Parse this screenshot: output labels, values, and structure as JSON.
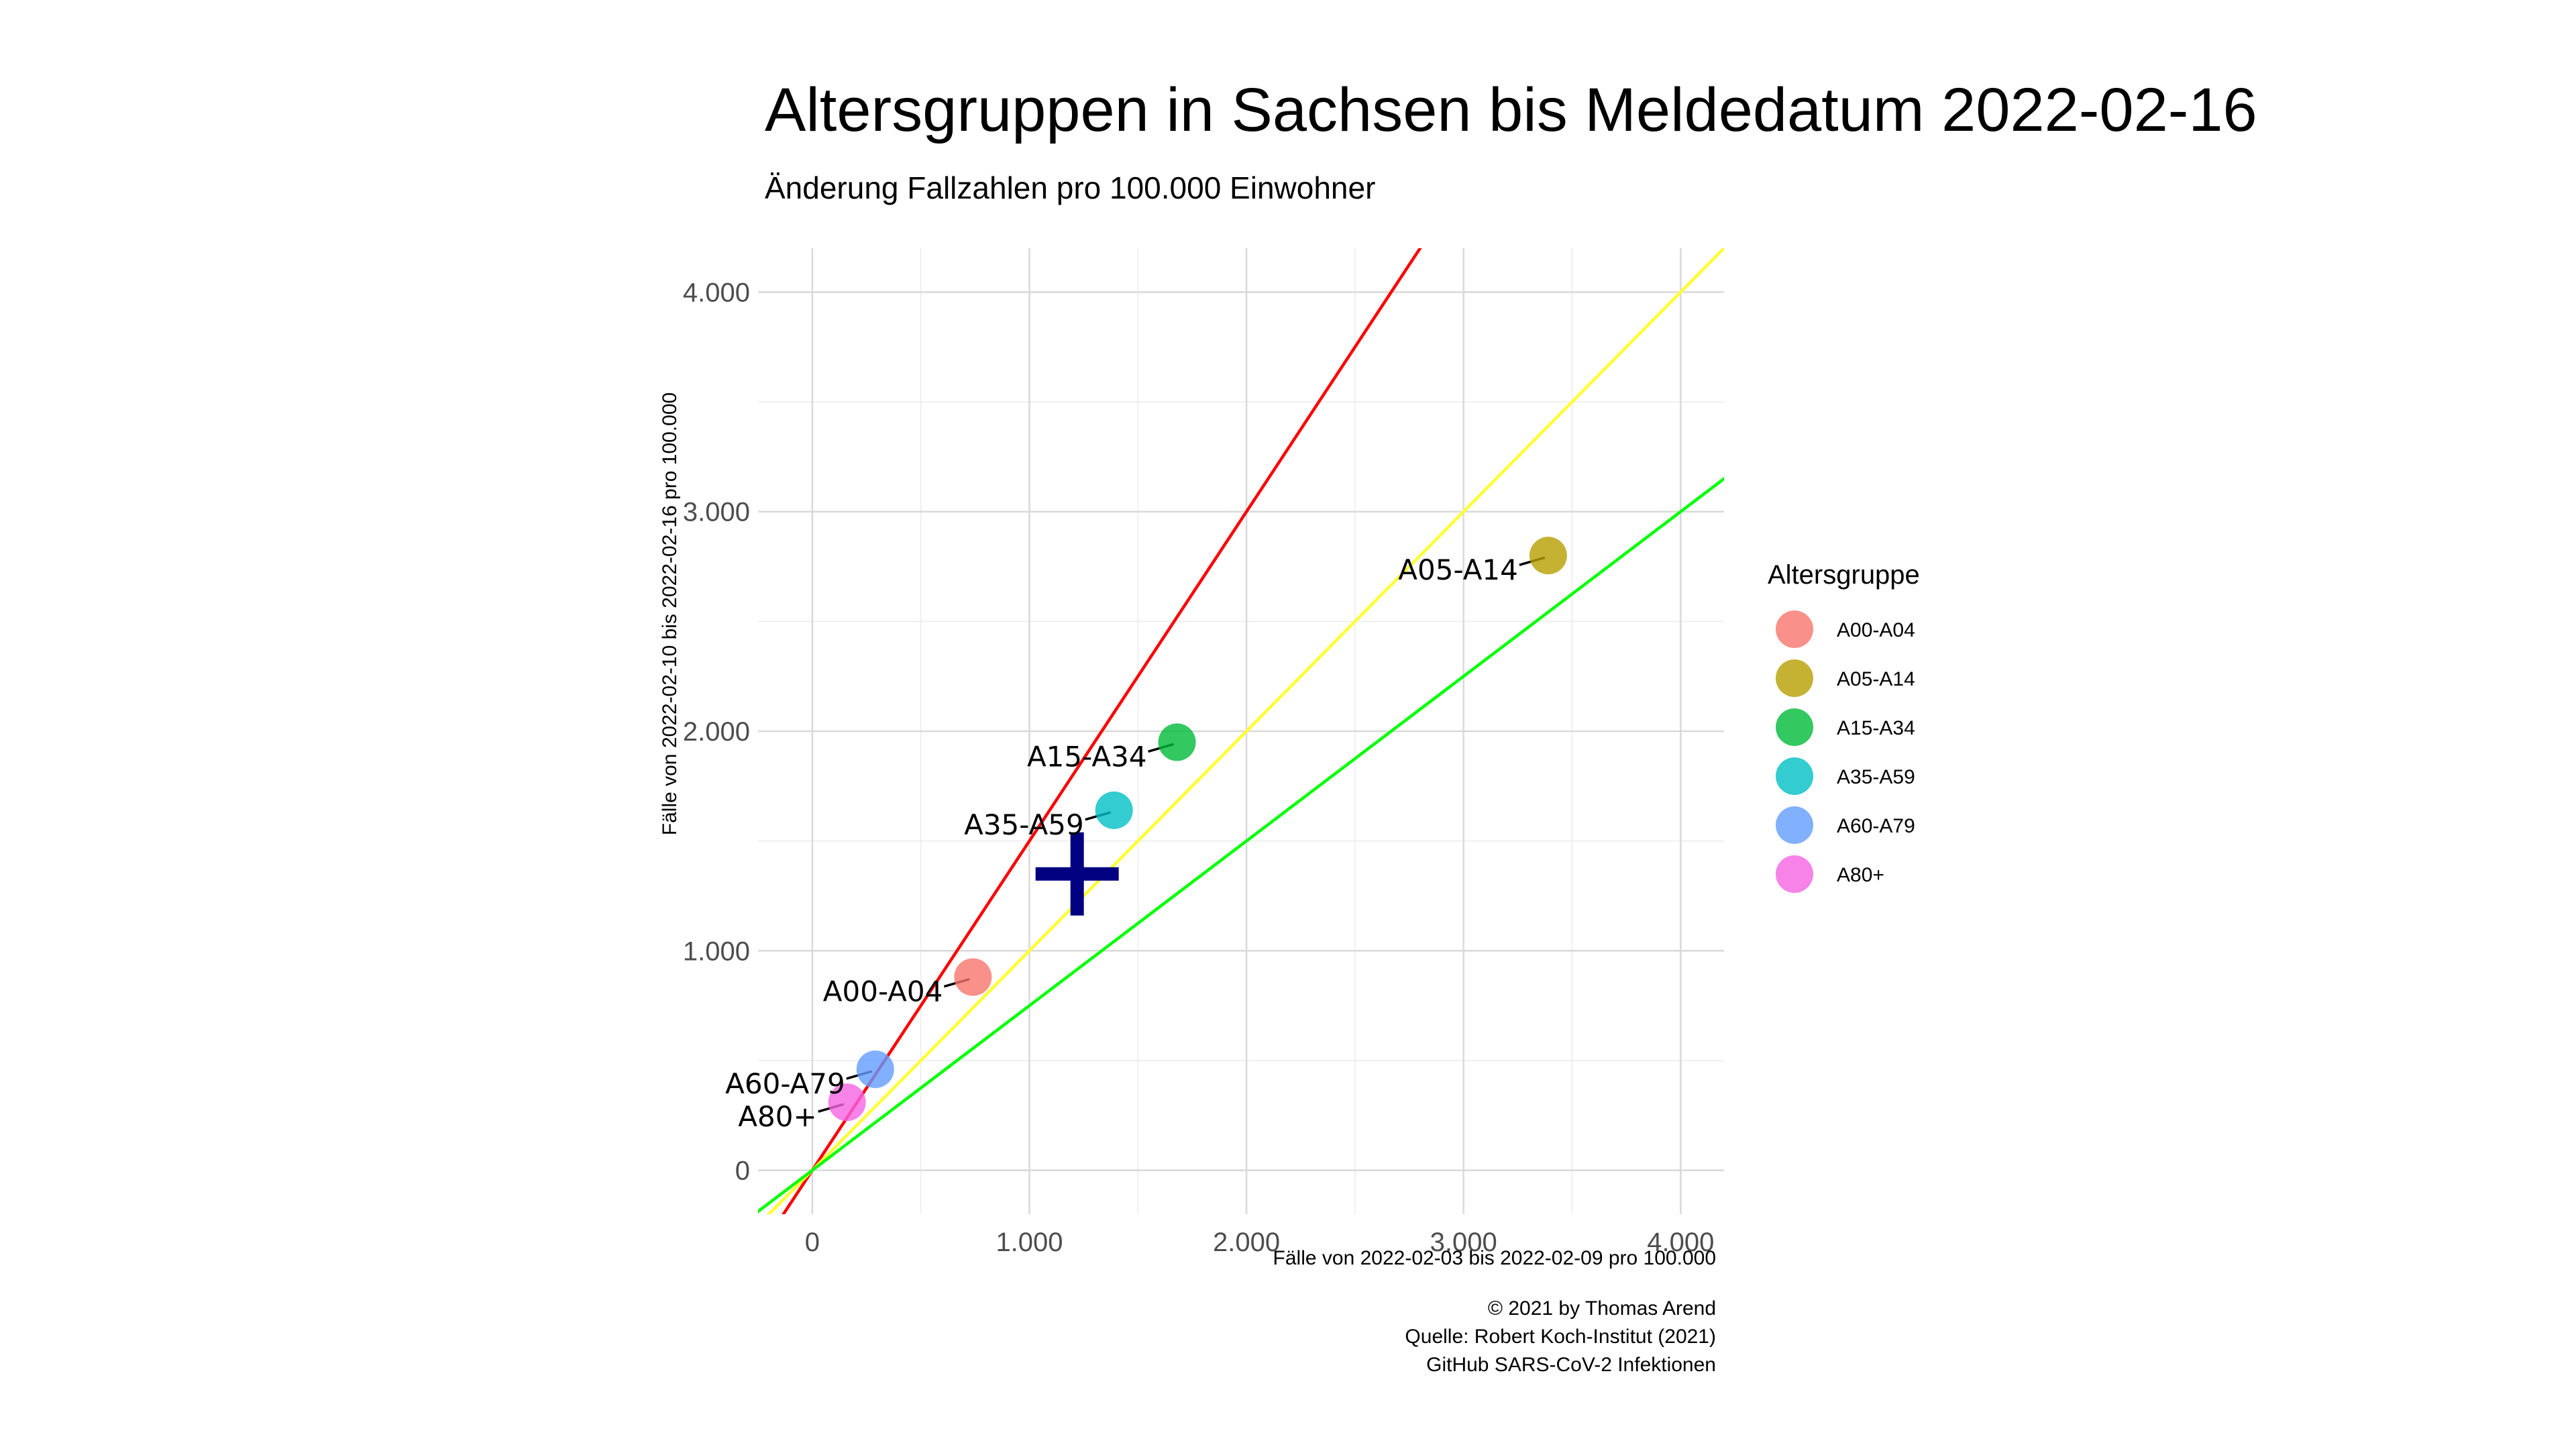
{
  "chart_data": {
    "type": "scatter",
    "title": "Altersgruppen in Sachsen bis Meldedatum 2022-02-16",
    "subtitle": "Änderung Fallzahlen pro 100.000 Einwohner",
    "xlabel": "Fälle von 2022-02-03 bis 2022-02-09 pro 100.000",
    "ylabel": "Fälle von 2022-02-10 bis 2022-02-16 pro 100.000",
    "xlim": [
      -250,
      4200
    ],
    "ylim": [
      -200,
      4200
    ],
    "x_ticks": [
      {
        "value": 0,
        "label": "0"
      },
      {
        "value": 1000,
        "label": "1.000"
      },
      {
        "value": 2000,
        "label": "2.000"
      },
      {
        "value": 3000,
        "label": "3.000"
      },
      {
        "value": 4000,
        "label": "4.000"
      }
    ],
    "y_ticks": [
      {
        "value": 0,
        "label": "0"
      },
      {
        "value": 1000,
        "label": "1.000"
      },
      {
        "value": 2000,
        "label": "2.000"
      },
      {
        "value": 3000,
        "label": "3.000"
      },
      {
        "value": 4000,
        "label": "4.000"
      }
    ],
    "grid": true,
    "reference_lines": [
      {
        "slope": 1.5,
        "color": "#ff0000"
      },
      {
        "slope": 1.0,
        "color": "#ffff33"
      },
      {
        "slope": 0.75,
        "color": "#00ff00"
      }
    ],
    "points": [
      {
        "name": "A00-A04",
        "x": 740,
        "y": 880,
        "color": "#f8766d"
      },
      {
        "name": "A05-A14",
        "x": 3390,
        "y": 2800,
        "color": "#b79f00"
      },
      {
        "name": "A15-A34",
        "x": 1680,
        "y": 1950,
        "color": "#00ba38"
      },
      {
        "name": "A35-A59",
        "x": 1390,
        "y": 1640,
        "color": "#00bfc4"
      },
      {
        "name": "A60-A79",
        "x": 290,
        "y": 460,
        "color": "#619cff"
      },
      {
        "name": "A80+",
        "x": 160,
        "y": 310,
        "color": "#f564e3"
      }
    ],
    "marker": {
      "x": 1220,
      "y": 1350,
      "color": "#000080",
      "symbol": "plus"
    },
    "legend": {
      "title": "Altersgruppe",
      "position": "right"
    },
    "caption": [
      "© 2021 by Thomas Arend",
      "Quelle: Robert Koch-Institut (2021)",
      "GitHub SARS-CoV-2 Infektionen"
    ]
  }
}
